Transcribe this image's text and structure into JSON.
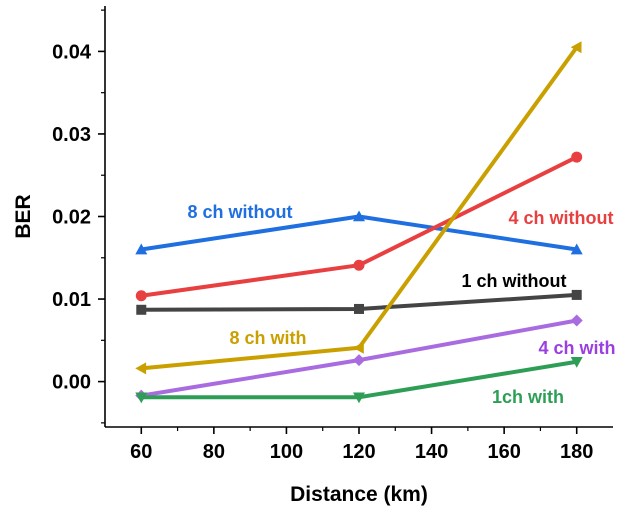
{
  "chart_data": {
    "type": "line",
    "title": "",
    "xlabel": "Distance (km)",
    "ylabel": "BER",
    "xlim": [
      50,
      190
    ],
    "ylim": [
      -0.0055,
      0.0455
    ],
    "x_ticks": [
      60,
      80,
      100,
      120,
      140,
      160,
      180
    ],
    "y_ticks": [
      0.0,
      0.01,
      0.02,
      0.03,
      0.04
    ],
    "y_tick_labels": [
      "0.00",
      "0.01",
      "0.02",
      "0.03",
      "0.04"
    ],
    "grid": false,
    "x": [
      60,
      120,
      180
    ],
    "series": [
      {
        "name": "8 ch without",
        "values": [
          0.016,
          0.02,
          0.016
        ],
        "color": "#1f6fe0",
        "marker": "triangle-up"
      },
      {
        "name": "4 ch without",
        "values": [
          0.0104,
          0.0141,
          0.0272
        ],
        "color": "#e84040",
        "marker": "circle"
      },
      {
        "name": "1 ch without",
        "values": [
          0.0087,
          0.0088,
          0.0105
        ],
        "color": "#444444",
        "marker": "square"
      },
      {
        "name": "8 ch with",
        "values": [
          0.0016,
          0.0041,
          0.0405
        ],
        "color": "#c9a000",
        "marker": "triangle-left"
      },
      {
        "name": "4 ch with",
        "values": [
          -0.0017,
          0.0026,
          0.0074
        ],
        "color": "#a96ce0",
        "marker": "diamond"
      },
      {
        "name": "1ch with",
        "values": [
          -0.0019,
          -0.0019,
          0.0024
        ],
        "color": "#2e9e57",
        "marker": "triangle-down"
      }
    ],
    "annotations": [
      {
        "text": "8 ch without",
        "color": "#1f6fe0"
      },
      {
        "text": "4 ch without",
        "color": "#e84040"
      },
      {
        "text": "1 ch without",
        "color": "#000000"
      },
      {
        "text": "8 ch with",
        "color": "#c9a000"
      },
      {
        "text": "4 ch with",
        "color": "#9b3fe0"
      },
      {
        "text": "1ch with",
        "color": "#2e9e57"
      }
    ]
  }
}
